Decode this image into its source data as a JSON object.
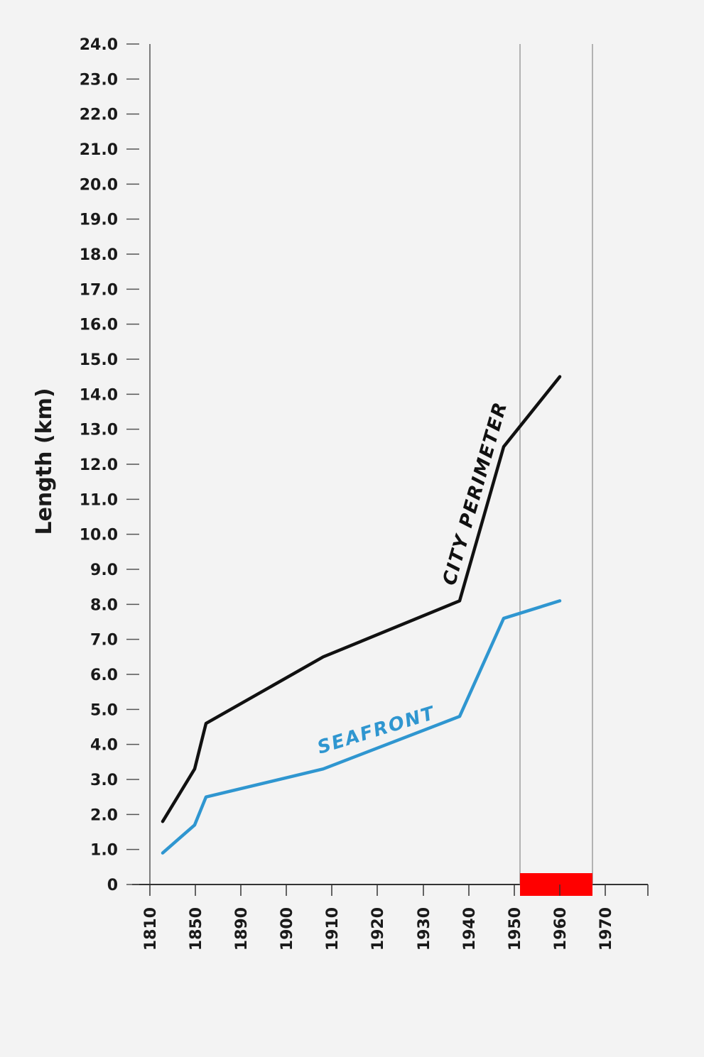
{
  "chart_data": {
    "type": "line",
    "ylabel": "Length (km)",
    "xlabel": "",
    "title": "",
    "ylim": [
      0,
      24
    ],
    "yticks": [
      {
        "value": 0,
        "label": "0"
      },
      {
        "value": 1,
        "label": "1.0"
      },
      {
        "value": 2,
        "label": "2.0"
      },
      {
        "value": 3,
        "label": "3.0"
      },
      {
        "value": 4,
        "label": "4.0"
      },
      {
        "value": 5,
        "label": "5.0"
      },
      {
        "value": 6,
        "label": "6.0"
      },
      {
        "value": 7,
        "label": "7.0"
      },
      {
        "value": 8,
        "label": "8.0"
      },
      {
        "value": 9,
        "label": "9.0"
      },
      {
        "value": 10,
        "label": "10.0"
      },
      {
        "value": 11,
        "label": "11.0"
      },
      {
        "value": 12,
        "label": "12.0"
      },
      {
        "value": 13,
        "label": "13.0"
      },
      {
        "value": 14,
        "label": "14.0"
      },
      {
        "value": 15,
        "label": "15.0"
      },
      {
        "value": 16,
        "label": "16.0"
      },
      {
        "value": 17,
        "label": "17.0"
      },
      {
        "value": 18,
        "label": "18.0"
      },
      {
        "value": 19,
        "label": "19.0"
      },
      {
        "value": 20,
        "label": "20.0"
      },
      {
        "value": 21,
        "label": "21.0"
      },
      {
        "value": 22,
        "label": "22.0"
      },
      {
        "value": 23,
        "label": "23.0"
      },
      {
        "value": 24,
        "label": "24.0"
      }
    ],
    "xticks": [
      "1810",
      "1850",
      "1890",
      "1900",
      "1910",
      "1920",
      "1930",
      "1940",
      "1950",
      "1960",
      "1970"
    ],
    "series": [
      {
        "name": "CITY PERIMETER",
        "color": "#111111",
        "points": [
          {
            "x": "1810",
            "y": 1.8
          },
          {
            "x": "1850",
            "y": 3.3
          },
          {
            "x": "1850",
            "y": 4.6
          },
          {
            "x": "1910",
            "y": 6.5
          },
          {
            "x": "1940",
            "y": 8.1
          },
          {
            "x": "1950",
            "y": 12.5
          },
          {
            "x": "1960",
            "y": 14.5
          }
        ]
      },
      {
        "name": "SEAFRONT",
        "color": "#2f96d0",
        "points": [
          {
            "x": "1810",
            "y": 0.9
          },
          {
            "x": "1850",
            "y": 1.7
          },
          {
            "x": "1850",
            "y": 2.5
          },
          {
            "x": "1910",
            "y": 3.3
          },
          {
            "x": "1940",
            "y": 4.8
          },
          {
            "x": "1950",
            "y": 7.6
          },
          {
            "x": "1960",
            "y": 8.1
          }
        ]
      }
    ],
    "highlight": {
      "color": "#ff0000",
      "x_start": "1950",
      "x_end": "1970"
    },
    "grid": false
  }
}
